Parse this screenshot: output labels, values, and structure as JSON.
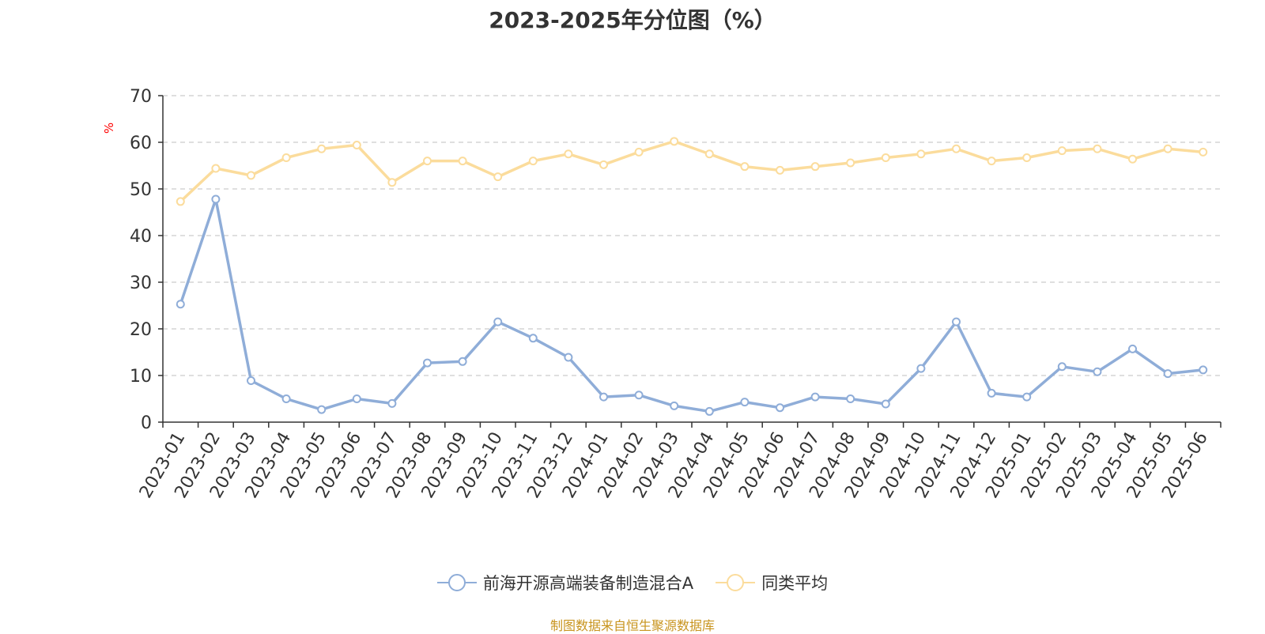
{
  "chart_data": {
    "type": "line",
    "title": "2023-2025年分位图（%）",
    "ylabel": "%",
    "xlabel": "",
    "ylim": [
      0,
      70
    ],
    "yticks": [
      0,
      10,
      20,
      30,
      40,
      50,
      60,
      70
    ],
    "grid": true,
    "legend_position": "bottom",
    "categories": [
      "2023-01",
      "2023-02",
      "2023-03",
      "2023-04",
      "2023-05",
      "2023-06",
      "2023-07",
      "2023-08",
      "2023-09",
      "2023-10",
      "2023-11",
      "2023-12",
      "2024-01",
      "2024-02",
      "2024-03",
      "2024-04",
      "2024-05",
      "2024-06",
      "2024-07",
      "2024-08",
      "2024-09",
      "2024-10",
      "2024-11",
      "2024-12",
      "2025-01",
      "2025-02",
      "2025-03",
      "2025-04",
      "2025-05",
      "2025-06"
    ],
    "series": [
      {
        "name": "前海开源高端装备制造混合A",
        "color": "#8fadd8",
        "values": [
          25.3,
          47.8,
          8.9,
          5.0,
          2.7,
          5.0,
          4.0,
          12.7,
          13.0,
          21.5,
          18.0,
          13.9,
          5.4,
          5.8,
          3.5,
          2.3,
          4.3,
          3.1,
          5.4,
          5.0,
          3.9,
          11.5,
          21.5,
          6.2,
          5.4,
          11.9,
          10.8,
          15.7,
          10.4,
          11.2
        ]
      },
      {
        "name": "同类平均",
        "color": "#fbdc9c",
        "values": [
          47.3,
          54.4,
          52.9,
          56.7,
          58.6,
          59.4,
          51.4,
          56.0,
          56.0,
          52.6,
          56.0,
          57.5,
          55.2,
          57.9,
          60.2,
          57.5,
          54.8,
          54.0,
          54.8,
          55.6,
          56.7,
          57.5,
          58.6,
          56.0,
          56.7,
          58.2,
          58.6,
          56.4,
          58.6,
          57.9
        ]
      }
    ]
  },
  "source_note": "制图数据来自恒生聚源数据库"
}
